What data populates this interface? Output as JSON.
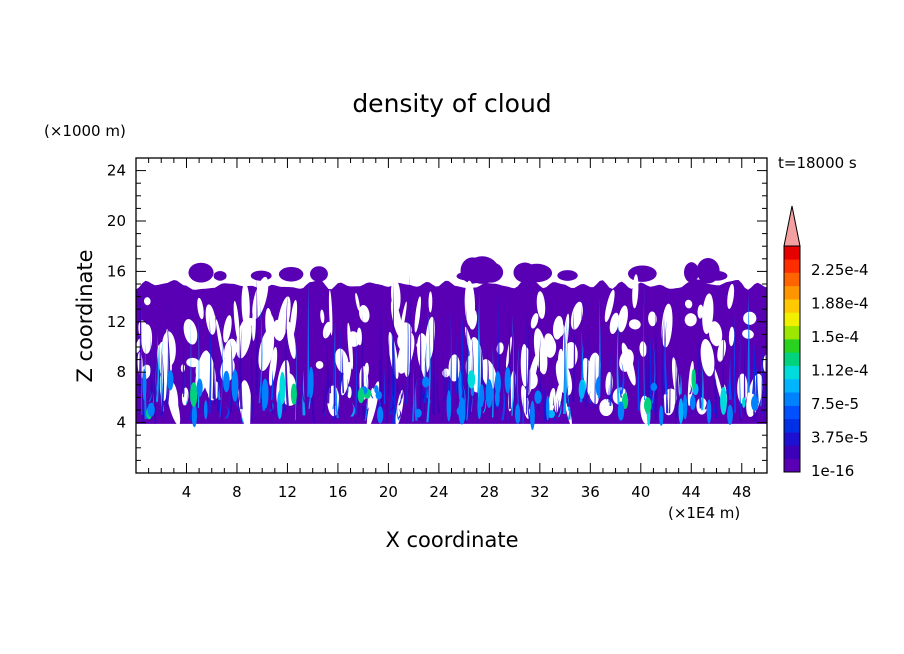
{
  "chart_data": {
    "type": "heatmap",
    "title": "density of cloud",
    "xlabel": "X coordinate",
    "ylabel": "Z coordinate",
    "x_unit": "(×1E4 m)",
    "y_unit": "(×1000 m)",
    "time_label": "t=18000 s",
    "xlim": [
      0,
      50
    ],
    "ylim": [
      0,
      25
    ],
    "x_ticks": [
      "4",
      "8",
      "12",
      "16",
      "20",
      "24",
      "28",
      "32",
      "36",
      "40",
      "44",
      "48"
    ],
    "y_ticks": [
      "4",
      "8",
      "12",
      "16",
      "20",
      "24"
    ],
    "cloud_base": 3.9,
    "cloud_top_layer": 15.4,
    "colorbar": {
      "labels": [
        "2.25e-4",
        "1.88e-4",
        "1.5e-4",
        "1.12e-4",
        "7.5e-5",
        "3.75e-5",
        "1e-16"
      ],
      "colors": [
        "#5a00b4",
        "#3b00b8",
        "#1e10d0",
        "#0030e6",
        "#0050ff",
        "#0082ff",
        "#00b4ff",
        "#00dcdc",
        "#00d27d",
        "#28d21e",
        "#9ce600",
        "#f0f000",
        "#ffc800",
        "#ff9600",
        "#ff6400",
        "#ff2d00",
        "#e60000"
      ],
      "extend_color": "#f5a0a0"
    },
    "background_color": "#5a00b4"
  }
}
